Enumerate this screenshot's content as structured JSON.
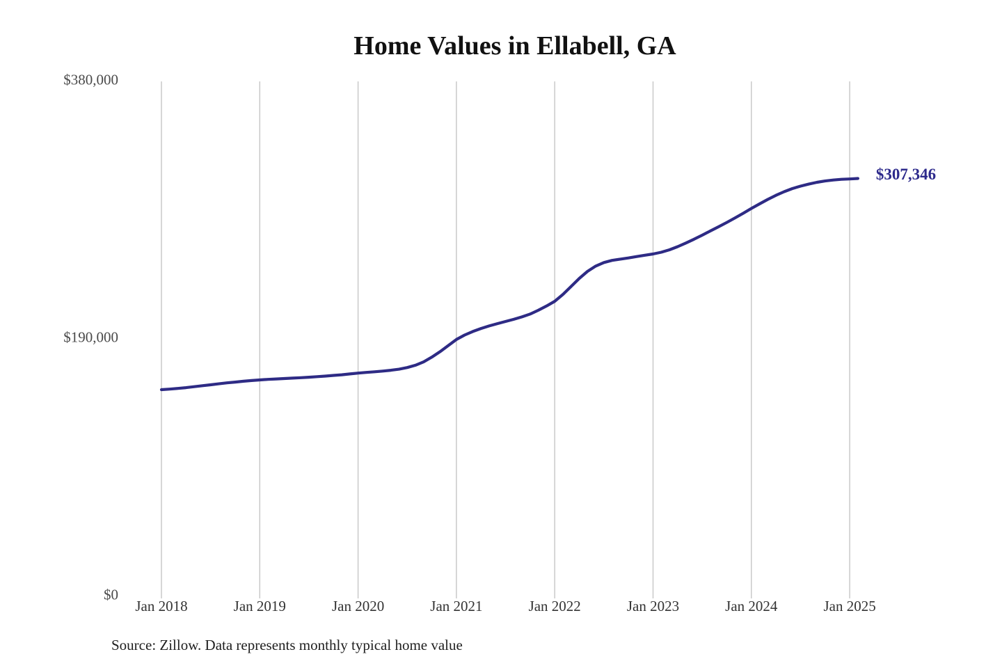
{
  "colors": {
    "line": "#2e2b85",
    "end_label": "#2d2a8c",
    "gridline": "#c9c9c9",
    "title_text": "#111111",
    "y_axis_text": "#4a4a4a",
    "x_axis_text": "#333333",
    "source_text": "#1f1f1f",
    "background": "#ffffff"
  },
  "chart_data": {
    "type": "line",
    "title": "Home Values in Ellabell, GA",
    "source": "Source: Zillow. Data represents monthly typical home value",
    "xlabel": "",
    "ylabel": "",
    "ylim": [
      0,
      380000
    ],
    "grid": "vertical-year-gridlines-only",
    "legend": "none",
    "x_tick_labels": [
      "Jan 2018",
      "Jan 2019",
      "Jan 2020",
      "Jan 2021",
      "Jan 2022",
      "Jan 2023",
      "Jan 2024",
      "Jan 2025"
    ],
    "y_ticks": [
      {
        "label": "$380,000",
        "value": 380000
      },
      {
        "label": "$190,000",
        "value": 190000
      },
      {
        "label": "$0",
        "value": 0
      }
    ],
    "series": [
      {
        "name": "Ellabell, GA monthly typical home value",
        "frequency": "monthly",
        "start_month": "Jan 2018",
        "end_month": "Feb 2025",
        "end_label": "$307,346",
        "end_value": 307346,
        "values": [
          151500,
          151900,
          152400,
          153000,
          153700,
          154400,
          155100,
          155800,
          156500,
          157100,
          157700,
          158200,
          158700,
          159100,
          159400,
          159700,
          160000,
          160300,
          160700,
          161100,
          161500,
          162000,
          162500,
          163100,
          163700,
          164200,
          164700,
          165200,
          165800,
          166600,
          167800,
          169500,
          172000,
          175500,
          179500,
          184000,
          188500,
          191800,
          194400,
          196600,
          198500,
          200200,
          201800,
          203400,
          205200,
          207300,
          210100,
          213200,
          216700,
          221800,
          227700,
          233600,
          238800,
          242700,
          245300,
          246900,
          247800,
          248700,
          249700,
          250700,
          251600,
          252900,
          254700,
          257000,
          259700,
          262500,
          265500,
          268600,
          271700,
          274900,
          278200,
          281600,
          285200,
          288600,
          291900,
          294900,
          297600,
          299900,
          301700,
          303200,
          304500,
          305500,
          306200,
          306700,
          307000,
          307346
        ]
      }
    ]
  }
}
